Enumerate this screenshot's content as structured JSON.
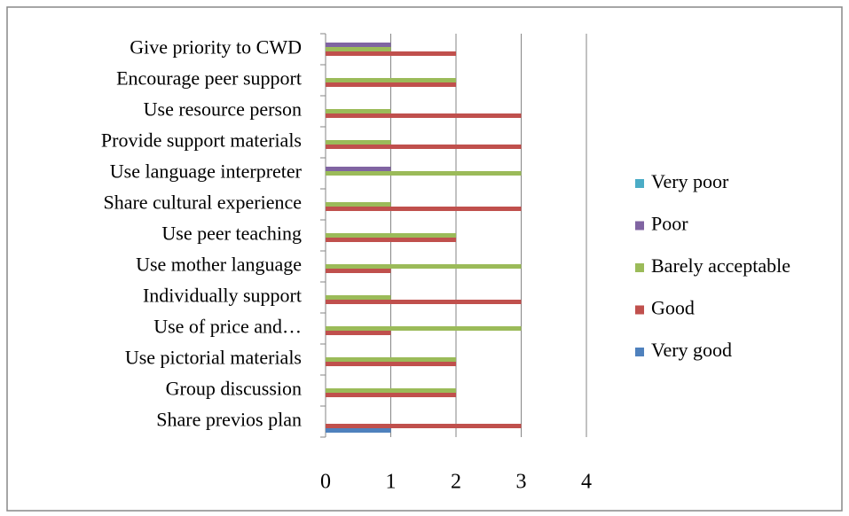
{
  "chart_data": {
    "type": "bar",
    "orientation": "horizontal",
    "categories": [
      "Share previos plan",
      "Group discussion",
      "Use pictorial materials",
      "Use of price and…",
      "Individually support",
      "Use mother language",
      "Use peer teaching",
      "Share cultural experience",
      "Use language interpreter",
      "Provide support materials",
      "Use resource person",
      "Encourage peer support",
      "Give priority to CWD"
    ],
    "series": [
      {
        "name": "Very good",
        "color": "#4f81bd",
        "values": [
          1,
          0,
          0,
          0,
          0,
          0,
          0,
          0,
          0,
          0,
          0,
          0,
          0
        ]
      },
      {
        "name": "Good",
        "color": "#c0504d",
        "values": [
          3,
          2,
          2,
          1,
          3,
          1,
          2,
          3,
          0,
          3,
          3,
          2,
          2
        ]
      },
      {
        "name": "Barely acceptable",
        "color": "#9bbb59",
        "values": [
          0,
          2,
          2,
          3,
          1,
          3,
          2,
          1,
          3,
          1,
          1,
          2,
          1
        ]
      },
      {
        "name": "Poor",
        "color": "#8064a2",
        "values": [
          0,
          0,
          0,
          0,
          0,
          0,
          0,
          0,
          1,
          0,
          0,
          0,
          1
        ]
      },
      {
        "name": "Very poor",
        "color": "#4bacc6",
        "values": [
          0,
          0,
          0,
          0,
          0,
          0,
          0,
          0,
          0,
          0,
          0,
          0,
          0
        ]
      }
    ],
    "xlim": [
      0,
      4
    ],
    "xticks": [
      0,
      1,
      2,
      3,
      4
    ],
    "grid": true,
    "legend": "right"
  }
}
